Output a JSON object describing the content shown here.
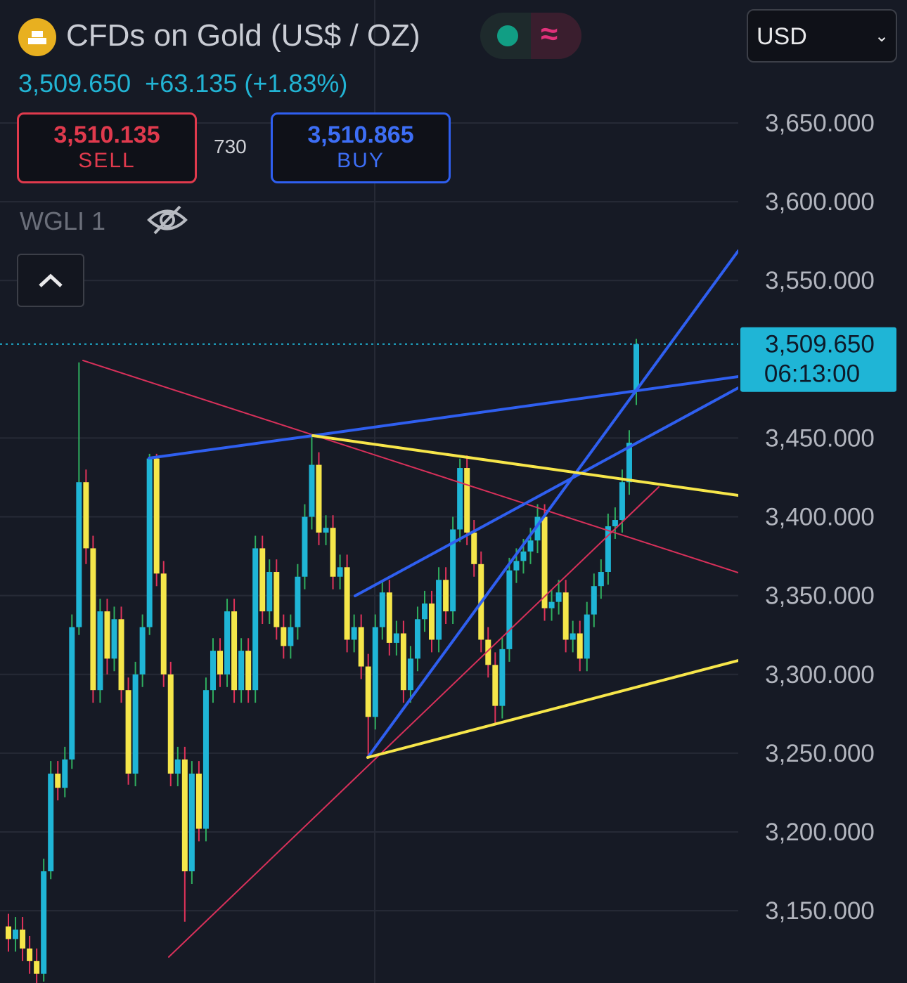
{
  "header": {
    "title": "CFDs on Gold (US$ / OZ)",
    "last_price": "3,509.650",
    "change": "+63.135",
    "change_pct": "(+1.83%)",
    "sell_price": "3,510.135",
    "sell_label": "SELL",
    "spread": "730",
    "buy_price": "3,510.865",
    "buy_label": "BUY",
    "indicator": "WGLI 1",
    "currency": "USD",
    "countdown": "06:13:00"
  },
  "chart_data": {
    "type": "candlestick",
    "ylim": [
      3104.1,
      3728.05
    ],
    "yticks": [
      {
        "value": 3150,
        "label": "3,150.000"
      },
      {
        "value": 3200,
        "label": "3,200.000"
      },
      {
        "value": 3250,
        "label": "3,250.000"
      },
      {
        "value": 3300,
        "label": "3,300.000"
      },
      {
        "value": 3350,
        "label": "3,350.000"
      },
      {
        "value": 3400,
        "label": "3,400.000"
      },
      {
        "value": 3450,
        "label": "3,450.000"
      },
      {
        "value": 3550,
        "label": "3,550.000"
      },
      {
        "value": 3600,
        "label": "3,600.000"
      },
      {
        "value": 3650,
        "label": "3,650.000"
      }
    ],
    "grid": true,
    "up_color": "#1fb5d6",
    "down_color": "#f5e64a",
    "up_wick": "#2fae5f",
    "down_wick": "#e0335a",
    "open": [
      3140,
      3132,
      3138,
      3126,
      3118,
      3110,
      3175,
      3237,
      3228,
      3246,
      3330,
      3422,
      3380,
      3290,
      3340,
      3310,
      3335,
      3290,
      3237,
      3300,
      3330,
      3437,
      3364,
      3300,
      3237,
      3246,
      3175,
      3237,
      3202,
      3290,
      3315,
      3300,
      3340,
      3290,
      3315,
      3290,
      3380,
      3340,
      3365,
      3330,
      3318,
      3330,
      3362,
      3400,
      3433,
      3390,
      3393,
      3362,
      3368,
      3322,
      3330,
      3305,
      3273,
      3330,
      3352,
      3320,
      3326,
      3290,
      3310,
      3335,
      3345,
      3322,
      3360,
      3340,
      3392,
      3431,
      3390,
      3370,
      3322,
      3306,
      3280,
      3316,
      3366,
      3372,
      3378,
      3385,
      3400,
      3342,
      3346,
      3352,
      3322,
      3326,
      3310,
      3338,
      3356,
      3365,
      3394,
      3398,
      3422,
      3480
    ],
    "high": [
      3148,
      3146,
      3146,
      3134,
      3126,
      3183,
      3245,
      3245,
      3254,
      3338,
      3498,
      3430,
      3388,
      3348,
      3348,
      3343,
      3343,
      3298,
      3308,
      3338,
      3440,
      3440,
      3372,
      3308,
      3254,
      3254,
      3245,
      3245,
      3298,
      3323,
      3323,
      3348,
      3348,
      3323,
      3323,
      3388,
      3388,
      3373,
      3373,
      3338,
      3338,
      3370,
      3408,
      3451,
      3441,
      3401,
      3401,
      3376,
      3376,
      3338,
      3338,
      3313,
      3338,
      3360,
      3360,
      3334,
      3334,
      3318,
      3343,
      3353,
      3353,
      3368,
      3368,
      3400,
      3437,
      3439,
      3398,
      3378,
      3330,
      3314,
      3324,
      3374,
      3380,
      3386,
      3393,
      3408,
      3408,
      3354,
      3360,
      3360,
      3334,
      3334,
      3346,
      3364,
      3373,
      3402,
      3406,
      3430,
      3455,
      3513
    ],
    "low": [
      3124,
      3124,
      3118,
      3110,
      3102,
      3105,
      3170,
      3220,
      3222,
      3240,
      3325,
      3370,
      3282,
      3282,
      3300,
      3302,
      3282,
      3230,
      3229,
      3292,
      3325,
      3356,
      3292,
      3229,
      3229,
      3143,
      3167,
      3194,
      3194,
      3282,
      3292,
      3292,
      3282,
      3282,
      3282,
      3282,
      3332,
      3332,
      3322,
      3310,
      3310,
      3322,
      3354,
      3392,
      3382,
      3382,
      3354,
      3354,
      3314,
      3314,
      3297,
      3247,
      3265,
      3322,
      3312,
      3312,
      3282,
      3282,
      3302,
      3327,
      3314,
      3314,
      3332,
      3332,
      3384,
      3382,
      3362,
      3314,
      3298,
      3268,
      3272,
      3308,
      3358,
      3364,
      3370,
      3377,
      3334,
      3334,
      3338,
      3314,
      3314,
      3302,
      3302,
      3330,
      3348,
      3357,
      3386,
      3390,
      3414,
      3471
    ],
    "close": [
      3132,
      3138,
      3126,
      3118,
      3110,
      3175,
      3237,
      3228,
      3246,
      3330,
      3422,
      3380,
      3290,
      3340,
      3310,
      3335,
      3290,
      3237,
      3300,
      3330,
      3437,
      3364,
      3300,
      3237,
      3246,
      3175,
      3237,
      3202,
      3290,
      3315,
      3300,
      3340,
      3290,
      3315,
      3290,
      3380,
      3340,
      3365,
      3330,
      3318,
      3330,
      3362,
      3400,
      3433,
      3390,
      3393,
      3362,
      3368,
      3322,
      3330,
      3305,
      3273,
      3330,
      3352,
      3320,
      3326,
      3290,
      3310,
      3335,
      3345,
      3322,
      3360,
      3340,
      3392,
      3431,
      3390,
      3370,
      3322,
      3306,
      3280,
      3316,
      3366,
      3372,
      3378,
      3385,
      3400,
      3342,
      3346,
      3352,
      3322,
      3326,
      3310,
      3338,
      3356,
      3365,
      3394,
      3398,
      3422,
      3447,
      3509.65
    ]
  }
}
